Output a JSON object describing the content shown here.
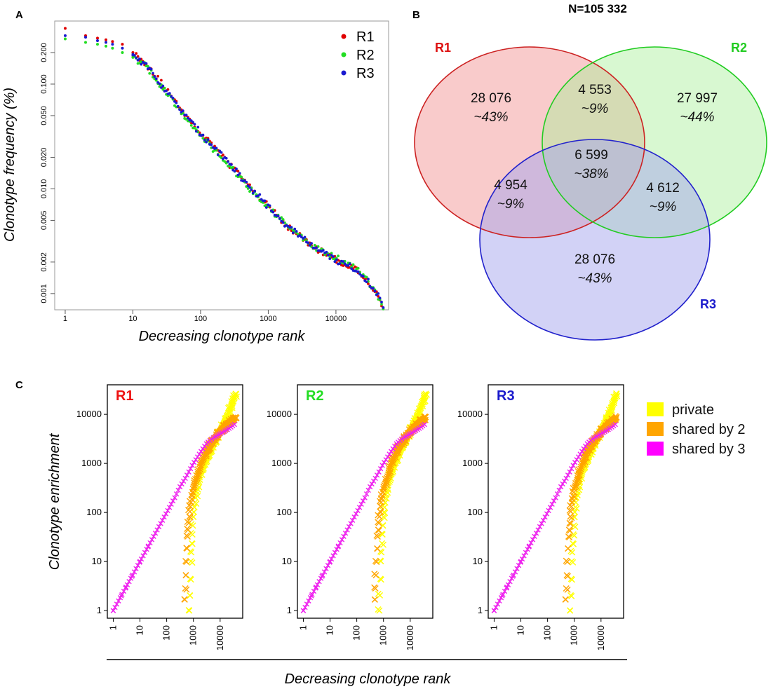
{
  "panels": {
    "a": {
      "letter": "A"
    },
    "b": {
      "letter": "B"
    },
    "c": {
      "letter": "C"
    }
  },
  "chart_data": [
    {
      "id": "A",
      "type": "scatter",
      "xscale": "log",
      "yscale": "log",
      "xlabel": "Decreasing clonotype rank",
      "ylabel": "Clonotype frequency (%)",
      "xlim": [
        0.7,
        60000
      ],
      "ylim": [
        0.0007,
        0.4
      ],
      "xticks": [
        1,
        10,
        100,
        1000,
        10000
      ],
      "xtick_labels": [
        "1",
        "10",
        "100",
        "1000",
        "10000"
      ],
      "yticks": [
        0.001,
        0.002,
        0.005,
        0.01,
        0.02,
        0.05,
        0.1,
        0.2
      ],
      "ytick_labels": [
        "0.001",
        "0.002",
        "0.005",
        "0.010",
        "0.020",
        "0.050",
        "0.100",
        "0.200"
      ],
      "legend": "top-right",
      "series": [
        {
          "name": "R1",
          "color": "#e00000",
          "points": [
            [
              1,
              0.34
            ],
            [
              2,
              0.29
            ],
            [
              3,
              0.275
            ],
            [
              4,
              0.265
            ],
            [
              5,
              0.255
            ],
            [
              7,
              0.24
            ],
            [
              10,
              0.2
            ],
            [
              15,
              0.16
            ],
            [
              20,
              0.13
            ],
            [
              30,
              0.09
            ],
            [
              50,
              0.06
            ],
            [
              70,
              0.045
            ],
            [
              100,
              0.034
            ],
            [
              200,
              0.021
            ],
            [
              500,
              0.011
            ],
            [
              1000,
              0.0068
            ],
            [
              2000,
              0.0043
            ],
            [
              5000,
              0.0027
            ],
            [
              10000,
              0.0021
            ],
            [
              20000,
              0.0017
            ],
            [
              30000,
              0.0013
            ],
            [
              40000,
              0.001
            ],
            [
              50000,
              0.00075
            ]
          ]
        },
        {
          "name": "R2",
          "color": "#22dd22",
          "points": [
            [
              1,
              0.27
            ],
            [
              2,
              0.25
            ],
            [
              3,
              0.24
            ],
            [
              4,
              0.23
            ],
            [
              5,
              0.22
            ],
            [
              7,
              0.2
            ],
            [
              10,
              0.18
            ],
            [
              15,
              0.15
            ],
            [
              20,
              0.12
            ],
            [
              30,
              0.085
            ],
            [
              50,
              0.055
            ],
            [
              70,
              0.042
            ],
            [
              100,
              0.033
            ],
            [
              200,
              0.02
            ],
            [
              500,
              0.0105
            ],
            [
              1000,
              0.0067
            ],
            [
              2000,
              0.0043
            ],
            [
              5000,
              0.0027
            ],
            [
              10000,
              0.0022
            ],
            [
              20000,
              0.0017
            ],
            [
              30000,
              0.0013
            ],
            [
              40000,
              0.001
            ],
            [
              50000,
              0.00075
            ]
          ]
        },
        {
          "name": "R3",
          "color": "#1a1ad0",
          "points": [
            [
              1,
              0.29
            ],
            [
              2,
              0.28
            ],
            [
              3,
              0.26
            ],
            [
              4,
              0.25
            ],
            [
              5,
              0.24
            ],
            [
              7,
              0.22
            ],
            [
              10,
              0.19
            ],
            [
              15,
              0.155
            ],
            [
              20,
              0.125
            ],
            [
              30,
              0.088
            ],
            [
              50,
              0.057
            ],
            [
              70,
              0.044
            ],
            [
              100,
              0.034
            ],
            [
              200,
              0.021
            ],
            [
              500,
              0.011
            ],
            [
              1000,
              0.0068
            ],
            [
              2000,
              0.0043
            ],
            [
              5000,
              0.0027
            ],
            [
              10000,
              0.0021
            ],
            [
              20000,
              0.0017
            ],
            [
              30000,
              0.0013
            ],
            [
              40000,
              0.001
            ],
            [
              50000,
              0.00075
            ]
          ]
        }
      ]
    },
    {
      "id": "B",
      "type": "venn",
      "title": "N=105 332",
      "sets": [
        {
          "name": "R1",
          "label_color": "#dd1111",
          "fill": "#f4a0a0",
          "stroke": "#cc2222"
        },
        {
          "name": "R2",
          "label_color": "#22cc22",
          "fill": "#a8f09a",
          "stroke": "#22cc22"
        },
        {
          "name": "R3",
          "label_color": "#1a1acc",
          "fill": "#a6a6ee",
          "stroke": "#2222cc"
        }
      ],
      "regions": [
        {
          "sets": [
            "R1"
          ],
          "count": "28 076",
          "percent": "~43%"
        },
        {
          "sets": [
            "R2"
          ],
          "count": "27 997",
          "percent": "~44%"
        },
        {
          "sets": [
            "R3"
          ],
          "count": "28 076",
          "percent": "~43%"
        },
        {
          "sets": [
            "R1",
            "R2"
          ],
          "count": "4 553",
          "percent": "~9%"
        },
        {
          "sets": [
            "R1",
            "R3"
          ],
          "count": "4 954",
          "percent": "~9%"
        },
        {
          "sets": [
            "R2",
            "R3"
          ],
          "count": "4 612",
          "percent": "~9%"
        },
        {
          "sets": [
            "R1",
            "R2",
            "R3"
          ],
          "count": "6 599",
          "percent": "~38%"
        }
      ]
    },
    {
      "id": "C",
      "type": "scatter",
      "xscale": "log",
      "yscale": "log",
      "xlabel": "Decreasing clonotype rank",
      "ylabel": "Clonotype enrichment",
      "xlim": [
        0.6,
        70000
      ],
      "ylim": [
        0.7,
        40000
      ],
      "xticks": [
        1,
        10,
        100,
        1000,
        10000
      ],
      "xtick_labels": [
        "1",
        "10",
        "100",
        "1000",
        "10000"
      ],
      "yticks": [
        1,
        10,
        100,
        1000,
        10000
      ],
      "ytick_labels": [
        "1",
        "10",
        "100",
        "1000",
        "10000"
      ],
      "legend_entries": [
        {
          "name": "private",
          "color": "#ffff00"
        },
        {
          "name": "shared by 2",
          "color": "#ffa500"
        },
        {
          "name": "shared by 3",
          "color": "#ff00ff"
        }
      ],
      "facets": [
        {
          "name": "R1",
          "title_color": "#ee1111"
        },
        {
          "name": "R2",
          "title_color": "#22dd22"
        },
        {
          "name": "R3",
          "title_color": "#1a1acc"
        }
      ],
      "series": [
        {
          "name": "shared by 3",
          "color": "#ee22ee",
          "marker": "x",
          "points": [
            [
              1,
              1
            ],
            [
              2,
              2
            ],
            [
              3,
              3
            ],
            [
              5,
              5
            ],
            [
              10,
              10
            ],
            [
              20,
              20
            ],
            [
              50,
              50
            ],
            [
              100,
              100
            ],
            [
              200,
              200
            ],
            [
              300,
              320
            ],
            [
              500,
              500
            ],
            [
              1000,
              1000
            ],
            [
              2000,
              1800
            ],
            [
              3000,
              2500
            ],
            [
              5000,
              3200
            ],
            [
              10000,
              4000
            ],
            [
              20000,
              5000
            ],
            [
              40000,
              6600
            ]
          ]
        },
        {
          "name": "shared by 2",
          "color": "#ffa500",
          "marker": "x",
          "points": [
            [
              450,
              1
            ],
            [
              500,
              3
            ],
            [
              550,
              10
            ],
            [
              600,
              30
            ],
            [
              700,
              80
            ],
            [
              800,
              150
            ],
            [
              1000,
              300
            ],
            [
              1500,
              600
            ],
            [
              2000,
              1000
            ],
            [
              3000,
              1700
            ],
            [
              5000,
              2700
            ],
            [
              10000,
              4500
            ],
            [
              20000,
              6500
            ],
            [
              40000,
              9000
            ]
          ]
        },
        {
          "name": "private",
          "color": "#ffff00",
          "marker": "x",
          "points": [
            [
              700,
              1
            ],
            [
              750,
              3
            ],
            [
              800,
              10
            ],
            [
              900,
              30
            ],
            [
              1000,
              80
            ],
            [
              1200,
              200
            ],
            [
              1500,
              400
            ],
            [
              2000,
              700
            ],
            [
              3000,
              1200
            ],
            [
              5000,
              2200
            ],
            [
              10000,
              4500
            ],
            [
              20000,
              10000
            ],
            [
              40000,
              28000
            ]
          ]
        }
      ]
    }
  ]
}
